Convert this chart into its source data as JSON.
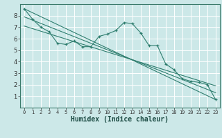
{
  "xlabel": "Humidex (Indice chaleur)",
  "bg_color": "#cce8e8",
  "grid_color": "#ffffff",
  "line_color": "#2e7d6e",
  "xlim": [
    -0.5,
    23.5
  ],
  "ylim": [
    0,
    9
  ],
  "xticks": [
    0,
    1,
    2,
    3,
    4,
    5,
    6,
    7,
    8,
    9,
    10,
    11,
    12,
    13,
    14,
    15,
    16,
    17,
    18,
    19,
    20,
    21,
    22,
    23
  ],
  "yticks": [
    1,
    2,
    3,
    4,
    5,
    6,
    7,
    8
  ],
  "main_x": [
    0,
    1,
    2,
    3,
    4,
    5,
    6,
    7,
    8,
    9,
    10,
    11,
    12,
    13,
    14,
    15,
    16,
    17,
    18,
    19,
    20,
    21,
    22,
    23
  ],
  "main_y": [
    8.6,
    7.7,
    7.0,
    6.6,
    5.6,
    5.5,
    5.8,
    5.3,
    5.3,
    6.2,
    6.4,
    6.7,
    7.4,
    7.3,
    6.5,
    5.4,
    5.4,
    3.8,
    3.3,
    2.5,
    2.3,
    2.2,
    2.0,
    0.7
  ],
  "trend1_x": [
    0,
    23
  ],
  "trend1_y": [
    8.6,
    0.7
  ],
  "trend2_x": [
    0,
    23
  ],
  "trend2_y": [
    7.9,
    1.3
  ],
  "trend3_x": [
    0,
    23
  ],
  "trend3_y": [
    7.1,
    1.9
  ],
  "xlabel_fontsize": 7,
  "tick_fontsize": 5,
  "ylabel_fontsize": 6
}
